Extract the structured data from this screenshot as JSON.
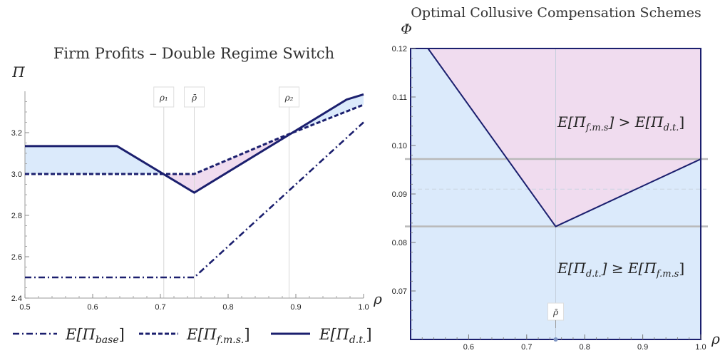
{
  "chart_data": [
    {
      "type": "line",
      "title": "Firm Profits – Double Regime Switch",
      "ylabel": "Π",
      "xlabel": "ρ",
      "xlim": [
        0.5,
        1.0
      ],
      "ylim": [
        2.4,
        3.4
      ],
      "x_ticks": [
        0.5,
        0.6,
        0.7,
        0.8,
        0.9,
        1.0
      ],
      "x_tick_labels": [
        "0.5",
        "0.6",
        "0.7",
        "0.8",
        "0.9",
        "1.0"
      ],
      "y_ticks": [
        2.4,
        2.6,
        2.8,
        3.0,
        3.2
      ],
      "y_tick_labels": [
        "2.4",
        "2.6",
        "2.8",
        "3.0",
        "3.2"
      ],
      "vertical_markers": [
        {
          "label": "ρ₁",
          "x": 0.705
        },
        {
          "label": "ρ̄",
          "x": 0.75
        },
        {
          "label": "ρ₂",
          "x": 0.89
        }
      ],
      "series": [
        {
          "name": "E[Π_base]",
          "legend": "E[Π",
          "legend_sub": "base",
          "legend_close": "]",
          "style": "dash-dot",
          "points": [
            [
              0.5,
              2.5
            ],
            [
              0.75,
              2.5
            ],
            [
              1.0,
              3.25
            ]
          ]
        },
        {
          "name": "E[Π_f.m.s.]",
          "legend": "E[Π",
          "legend_sub": "f.m.s.",
          "legend_close": "]",
          "style": "dashed",
          "points": [
            [
              0.5,
              3.0
            ],
            [
              0.75,
              3.0
            ],
            [
              0.88,
              3.18
            ],
            [
              1.0,
              3.335
            ]
          ]
        },
        {
          "name": "E[Π_d.t.]",
          "legend": "E[Π",
          "legend_sub": "d.t.",
          "legend_close": "]",
          "style": "solid",
          "points": [
            [
              0.5,
              3.135
            ],
            [
              0.636,
              3.135
            ],
            [
              0.75,
              2.91
            ],
            [
              0.975,
              3.36
            ],
            [
              1.0,
              3.385
            ]
          ]
        }
      ],
      "fill_colors": {
        "blue": "#dbeafb",
        "pink": "#f0dcef"
      },
      "line_color": "#1b1f6e",
      "grid": false
    },
    {
      "type": "area",
      "title": "Optimal Collusive Compensation Schemes",
      "ylabel": "Φ",
      "xlabel": "ρ",
      "xlim": [
        0.5,
        1.0
      ],
      "ylim": [
        0.06,
        0.12
      ],
      "x_ticks": [
        0.6,
        0.7,
        0.8,
        0.9,
        1.0
      ],
      "x_tick_labels": [
        "0.6",
        "0.7",
        "0.8",
        "0.9",
        "1.0"
      ],
      "y_ticks": [
        0.07,
        0.08,
        0.09,
        0.1,
        0.11,
        0.12
      ],
      "y_tick_labels": [
        "0.07",
        "0.08",
        "0.09",
        "0.10",
        "0.11",
        "0.12"
      ],
      "boundary": [
        [
          0.53,
          0.12
        ],
        [
          0.75,
          0.0833
        ],
        [
          1.0,
          0.0972
        ]
      ],
      "horizontal_lines": [
        0.0833,
        0.0972
      ],
      "faint_line_y": 0.091,
      "marker": {
        "label": "ρ̄",
        "x": 0.75
      },
      "region_labels": [
        {
          "left": "E[Π",
          "sub1": "f.m.s",
          "mid": "] > E[Π",
          "sub2": "d.t.",
          "right": "]"
        },
        {
          "left": "E[Π",
          "sub1": "d.t.",
          "mid": "] ≥ E[Π",
          "sub2": "f.m.s",
          "right": "]"
        }
      ],
      "fill_colors": {
        "blue": "#dbeafb",
        "pink": "#f0dcef"
      },
      "line_color": "#1b1f6e"
    }
  ]
}
